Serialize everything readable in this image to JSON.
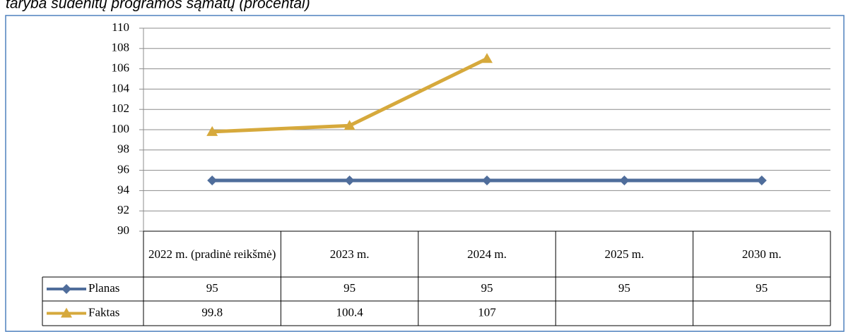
{
  "chart_data": {
    "type": "line",
    "title": "taryba sudėnitų programos sąmatų (procentai)",
    "categories": [
      "2022 m. (pradinė reikšmė)",
      "2023 m.",
      "2024 m.",
      "2025 m.",
      "2030 m."
    ],
    "series": [
      {
        "name": "Planas",
        "color": "#4f6d9b",
        "marker": "diamond",
        "values": [
          95,
          95,
          95,
          95,
          95
        ]
      },
      {
        "name": "Faktas",
        "color": "#d6a93c",
        "marker": "triangle",
        "values": [
          99.8,
          100.4,
          107,
          null,
          null
        ]
      }
    ],
    "ylim": [
      90,
      110
    ],
    "yticks": [
      90,
      92,
      94,
      96,
      98,
      100,
      102,
      104,
      106,
      108,
      110
    ],
    "grid": true
  }
}
